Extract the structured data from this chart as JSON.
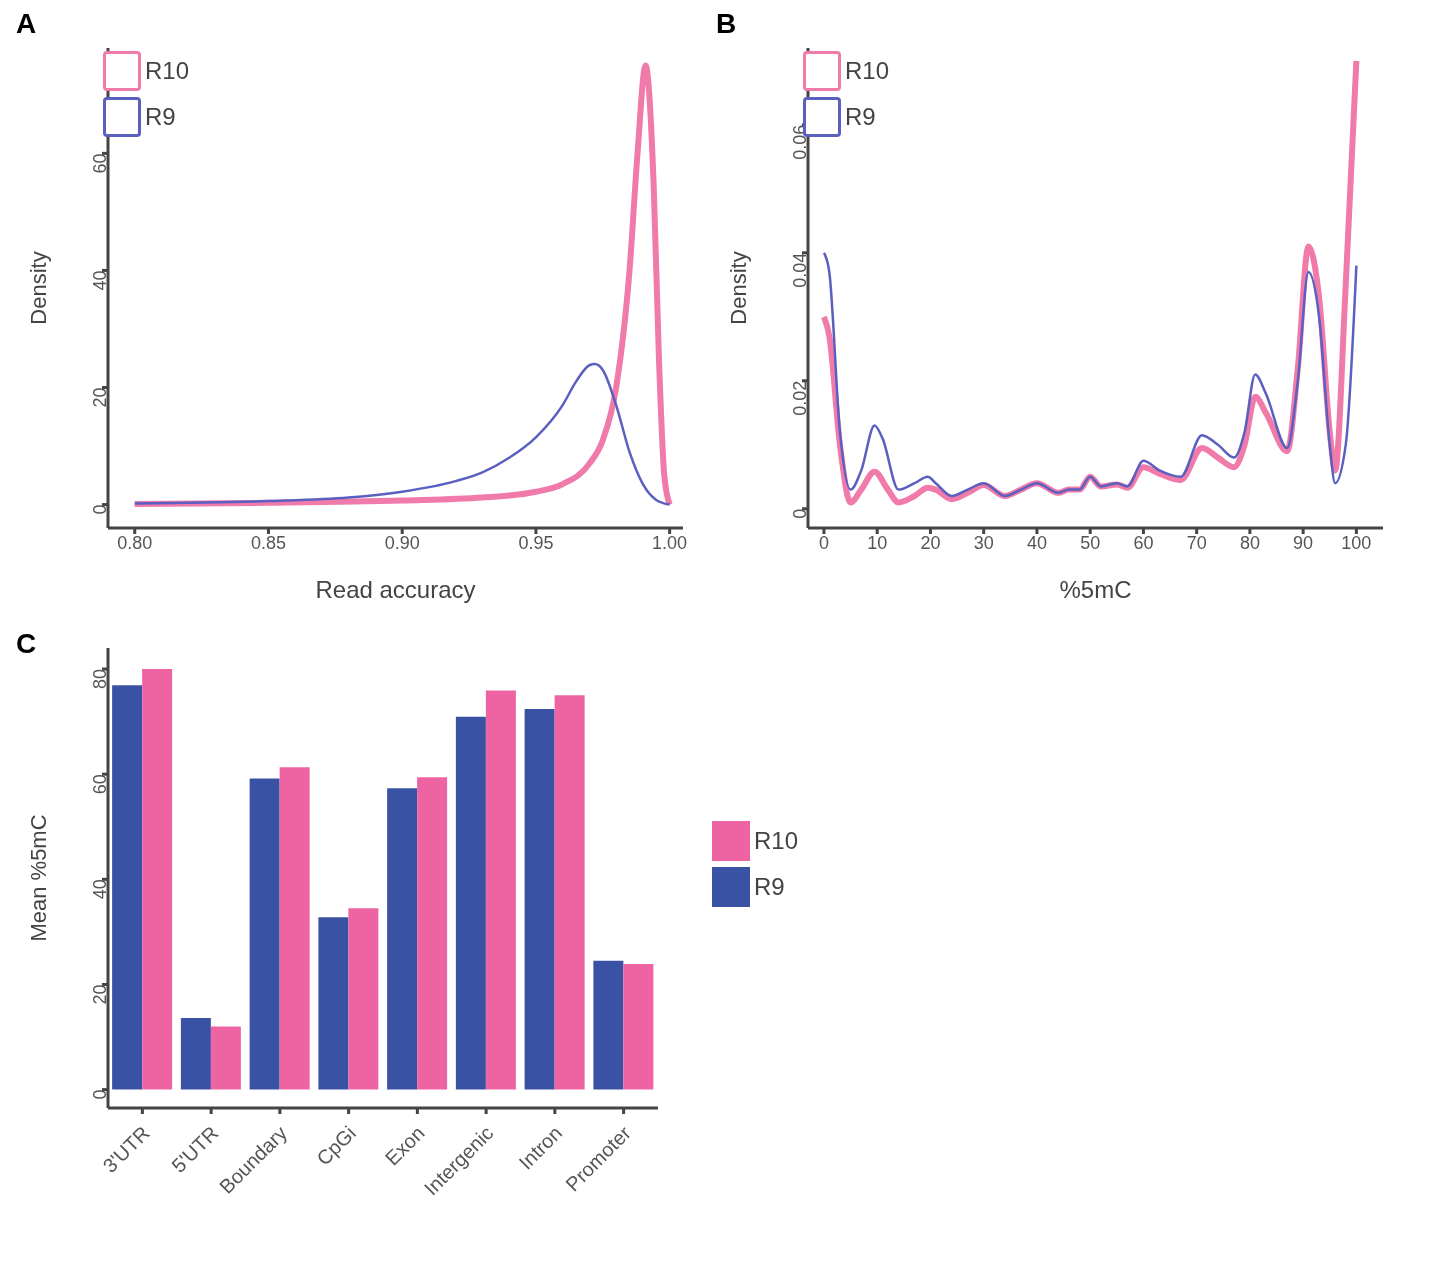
{
  "chart_data": [
    {
      "type": "line",
      "title": "A",
      "xlabel": "Read accuracy",
      "ylabel": "Density",
      "xlim": [
        0.79,
        1.005
      ],
      "xticks": [
        {
          "value": 0.8,
          "label": "0.80"
        },
        {
          "value": 0.85,
          "label": "0.85"
        },
        {
          "value": 0.9,
          "label": "0.90"
        },
        {
          "value": 0.95,
          "label": "0.95"
        },
        {
          "value": 1,
          "label": "1.00"
        }
      ],
      "ylim": [
        -4,
        78
      ],
      "yticks": [
        0,
        20,
        40,
        60
      ],
      "grid": false,
      "legend": "top left",
      "marker": "none",
      "line_style": "solid",
      "series": [
        {
          "name": "R10",
          "color": "#f07aaa",
          "x": [
            0.8,
            0.85,
            0.9,
            0.93,
            0.95,
            0.96,
            0.97,
            0.975,
            0.98,
            0.985,
            0.988,
            0.991,
            0.994,
            0.996,
            0.998,
            1.0
          ],
          "values": [
            0.1,
            0.3,
            0.7,
            1.2,
            2.2,
            3.5,
            7,
            11,
            20,
            40,
            60,
            75,
            55,
            25,
            5,
            0
          ]
        },
        {
          "name": "R9",
          "color": "#5a5fc0",
          "x": [
            0.8,
            0.85,
            0.88,
            0.9,
            0.92,
            0.93,
            0.94,
            0.95,
            0.96,
            0.965,
            0.97,
            0.972,
            0.975,
            0.98,
            0.985,
            0.99,
            0.995,
            1.0
          ],
          "values": [
            0.2,
            0.6,
            1.2,
            2.2,
            4,
            5.5,
            8,
            11.5,
            17,
            21,
            23.8,
            24,
            23,
            17,
            9,
            3.5,
            0.8,
            0
          ]
        }
      ]
    },
    {
      "type": "line",
      "title": "B",
      "xlabel": "%5mC",
      "ylabel": "Density",
      "xlim": [
        -3,
        105
      ],
      "xticks": [
        0,
        10,
        20,
        30,
        40,
        50,
        60,
        70,
        80,
        90,
        100
      ],
      "ylim": [
        -0.003,
        0.072
      ],
      "yticks": [
        0,
        0.02,
        0.04,
        0.06
      ],
      "grid": false,
      "legend": "top left",
      "marker": "none",
      "line_style": "solid",
      "series": [
        {
          "name": "R10",
          "color": "#f07aaa",
          "x": [
            0,
            1,
            3,
            5,
            7,
            9.5,
            12,
            14,
            17,
            19.5,
            21,
            24,
            27,
            30,
            34,
            37,
            40,
            44,
            46,
            48,
            50,
            52,
            55,
            57,
            60,
            63,
            67,
            71,
            74,
            77,
            79,
            81,
            83,
            87,
            89,
            91,
            93,
            95,
            96,
            98,
            100
          ],
          "values": [
            0.03,
            0.027,
            0.01,
            0.001,
            0.003,
            0.0058,
            0.003,
            0.001,
            0.002,
            0.0033,
            0.003,
            0.0015,
            0.0025,
            0.0037,
            0.002,
            0.003,
            0.004,
            0.0025,
            0.003,
            0.003,
            0.005,
            0.0035,
            0.0038,
            0.0033,
            0.0065,
            0.0055,
            0.0045,
            0.0095,
            0.008,
            0.0065,
            0.01,
            0.0175,
            0.015,
            0.009,
            0.022,
            0.041,
            0.033,
            0.012,
            0.006,
            0.035,
            0.07
          ]
        },
        {
          "name": "R9",
          "color": "#5a5fc0",
          "x": [
            0,
            1,
            3,
            5,
            7,
            9.5,
            11,
            14,
            17,
            19.5,
            21,
            24,
            27,
            30,
            34,
            37,
            40,
            44,
            46,
            48,
            50,
            52,
            55,
            57,
            60,
            63,
            67,
            71,
            74,
            77,
            79,
            81,
            83,
            87,
            89,
            91,
            93,
            95,
            96,
            98,
            100
          ],
          "values": [
            0.04,
            0.037,
            0.012,
            0.003,
            0.006,
            0.013,
            0.011,
            0.003,
            0.004,
            0.005,
            0.004,
            0.002,
            0.003,
            0.004,
            0.002,
            0.003,
            0.004,
            0.0025,
            0.003,
            0.003,
            0.005,
            0.0035,
            0.004,
            0.0035,
            0.0075,
            0.006,
            0.005,
            0.0115,
            0.01,
            0.008,
            0.012,
            0.021,
            0.018,
            0.0095,
            0.02,
            0.037,
            0.03,
            0.01,
            0.004,
            0.01,
            0.038
          ]
        }
      ]
    },
    {
      "type": "bar",
      "title": "C",
      "ylabel": "Mean %5mC",
      "categories": [
        "3'UTR",
        "5'UTR",
        "Boundary",
        "CpGi",
        "Exon",
        "Intergenic",
        "Intron",
        "Promoter"
      ],
      "ylim": [
        -3.5,
        84
      ],
      "yticks": [
        0,
        20,
        40,
        60,
        80
      ],
      "grid": false,
      "legend": "right",
      "series": [
        {
          "name": "R9",
          "color": "#3a52a4",
          "values": [
            76.9,
            13.6,
            59.2,
            32.8,
            57.3,
            70.9,
            72.4,
            24.5
          ]
        },
        {
          "name": "R10",
          "color": "#ee64a2",
          "values": [
            80,
            12,
            61.3,
            34.5,
            59.4,
            75.9,
            75,
            23.9
          ]
        }
      ]
    }
  ]
}
